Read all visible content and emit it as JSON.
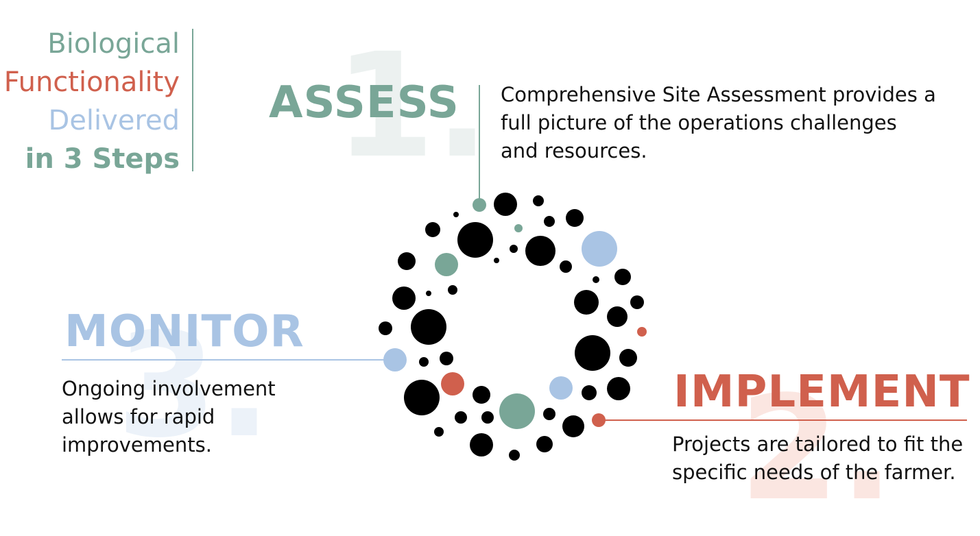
{
  "title": {
    "line1": "Biological",
    "line2": "Functionality",
    "line3": "Delivered",
    "line4": "in 3 Steps"
  },
  "steps": {
    "assess": {
      "numeral": "1.",
      "title": "ASSESS",
      "description": "Comprehensive Site Assessment provides a full picture of the operations challenges and resources."
    },
    "implement": {
      "numeral": "2.",
      "title": "IMPLEMENT",
      "description": "Projects are tailored to fit the specific needs of the farmer."
    },
    "monitor": {
      "numeral": "3.",
      "title": "MONITOR",
      "description": "Ongoing involvement allows for rapid improvements."
    }
  },
  "colors": {
    "green": "#79a697",
    "red": "#d0604d",
    "blue": "#a9c4e4",
    "black": "#000000"
  }
}
